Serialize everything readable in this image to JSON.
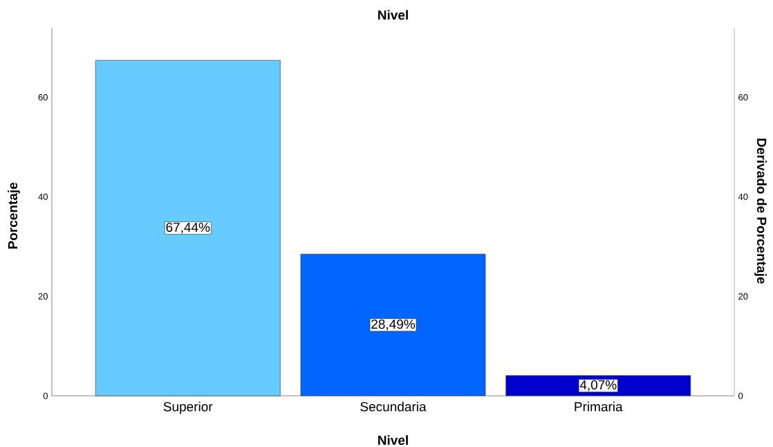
{
  "chart_data": {
    "type": "bar",
    "title": "Nivel",
    "xlabel": "Nivel",
    "ylabel": "Porcentaje",
    "y2label": "Derivado de Porcentaje",
    "categories": [
      "Superior",
      "Secundaria",
      "Primaria"
    ],
    "values": [
      67.44,
      28.49,
      4.07
    ],
    "colors": [
      "#66ccff",
      "#0066ff",
      "#0000cc"
    ],
    "value_labels": [
      "67,44%",
      "28,49%",
      "4,07%"
    ],
    "ylim": [
      0,
      74
    ],
    "yticks": [
      0,
      20,
      40,
      60
    ],
    "y2lim": [
      0,
      74
    ],
    "y2ticks": [
      0,
      20,
      40,
      60
    ]
  }
}
